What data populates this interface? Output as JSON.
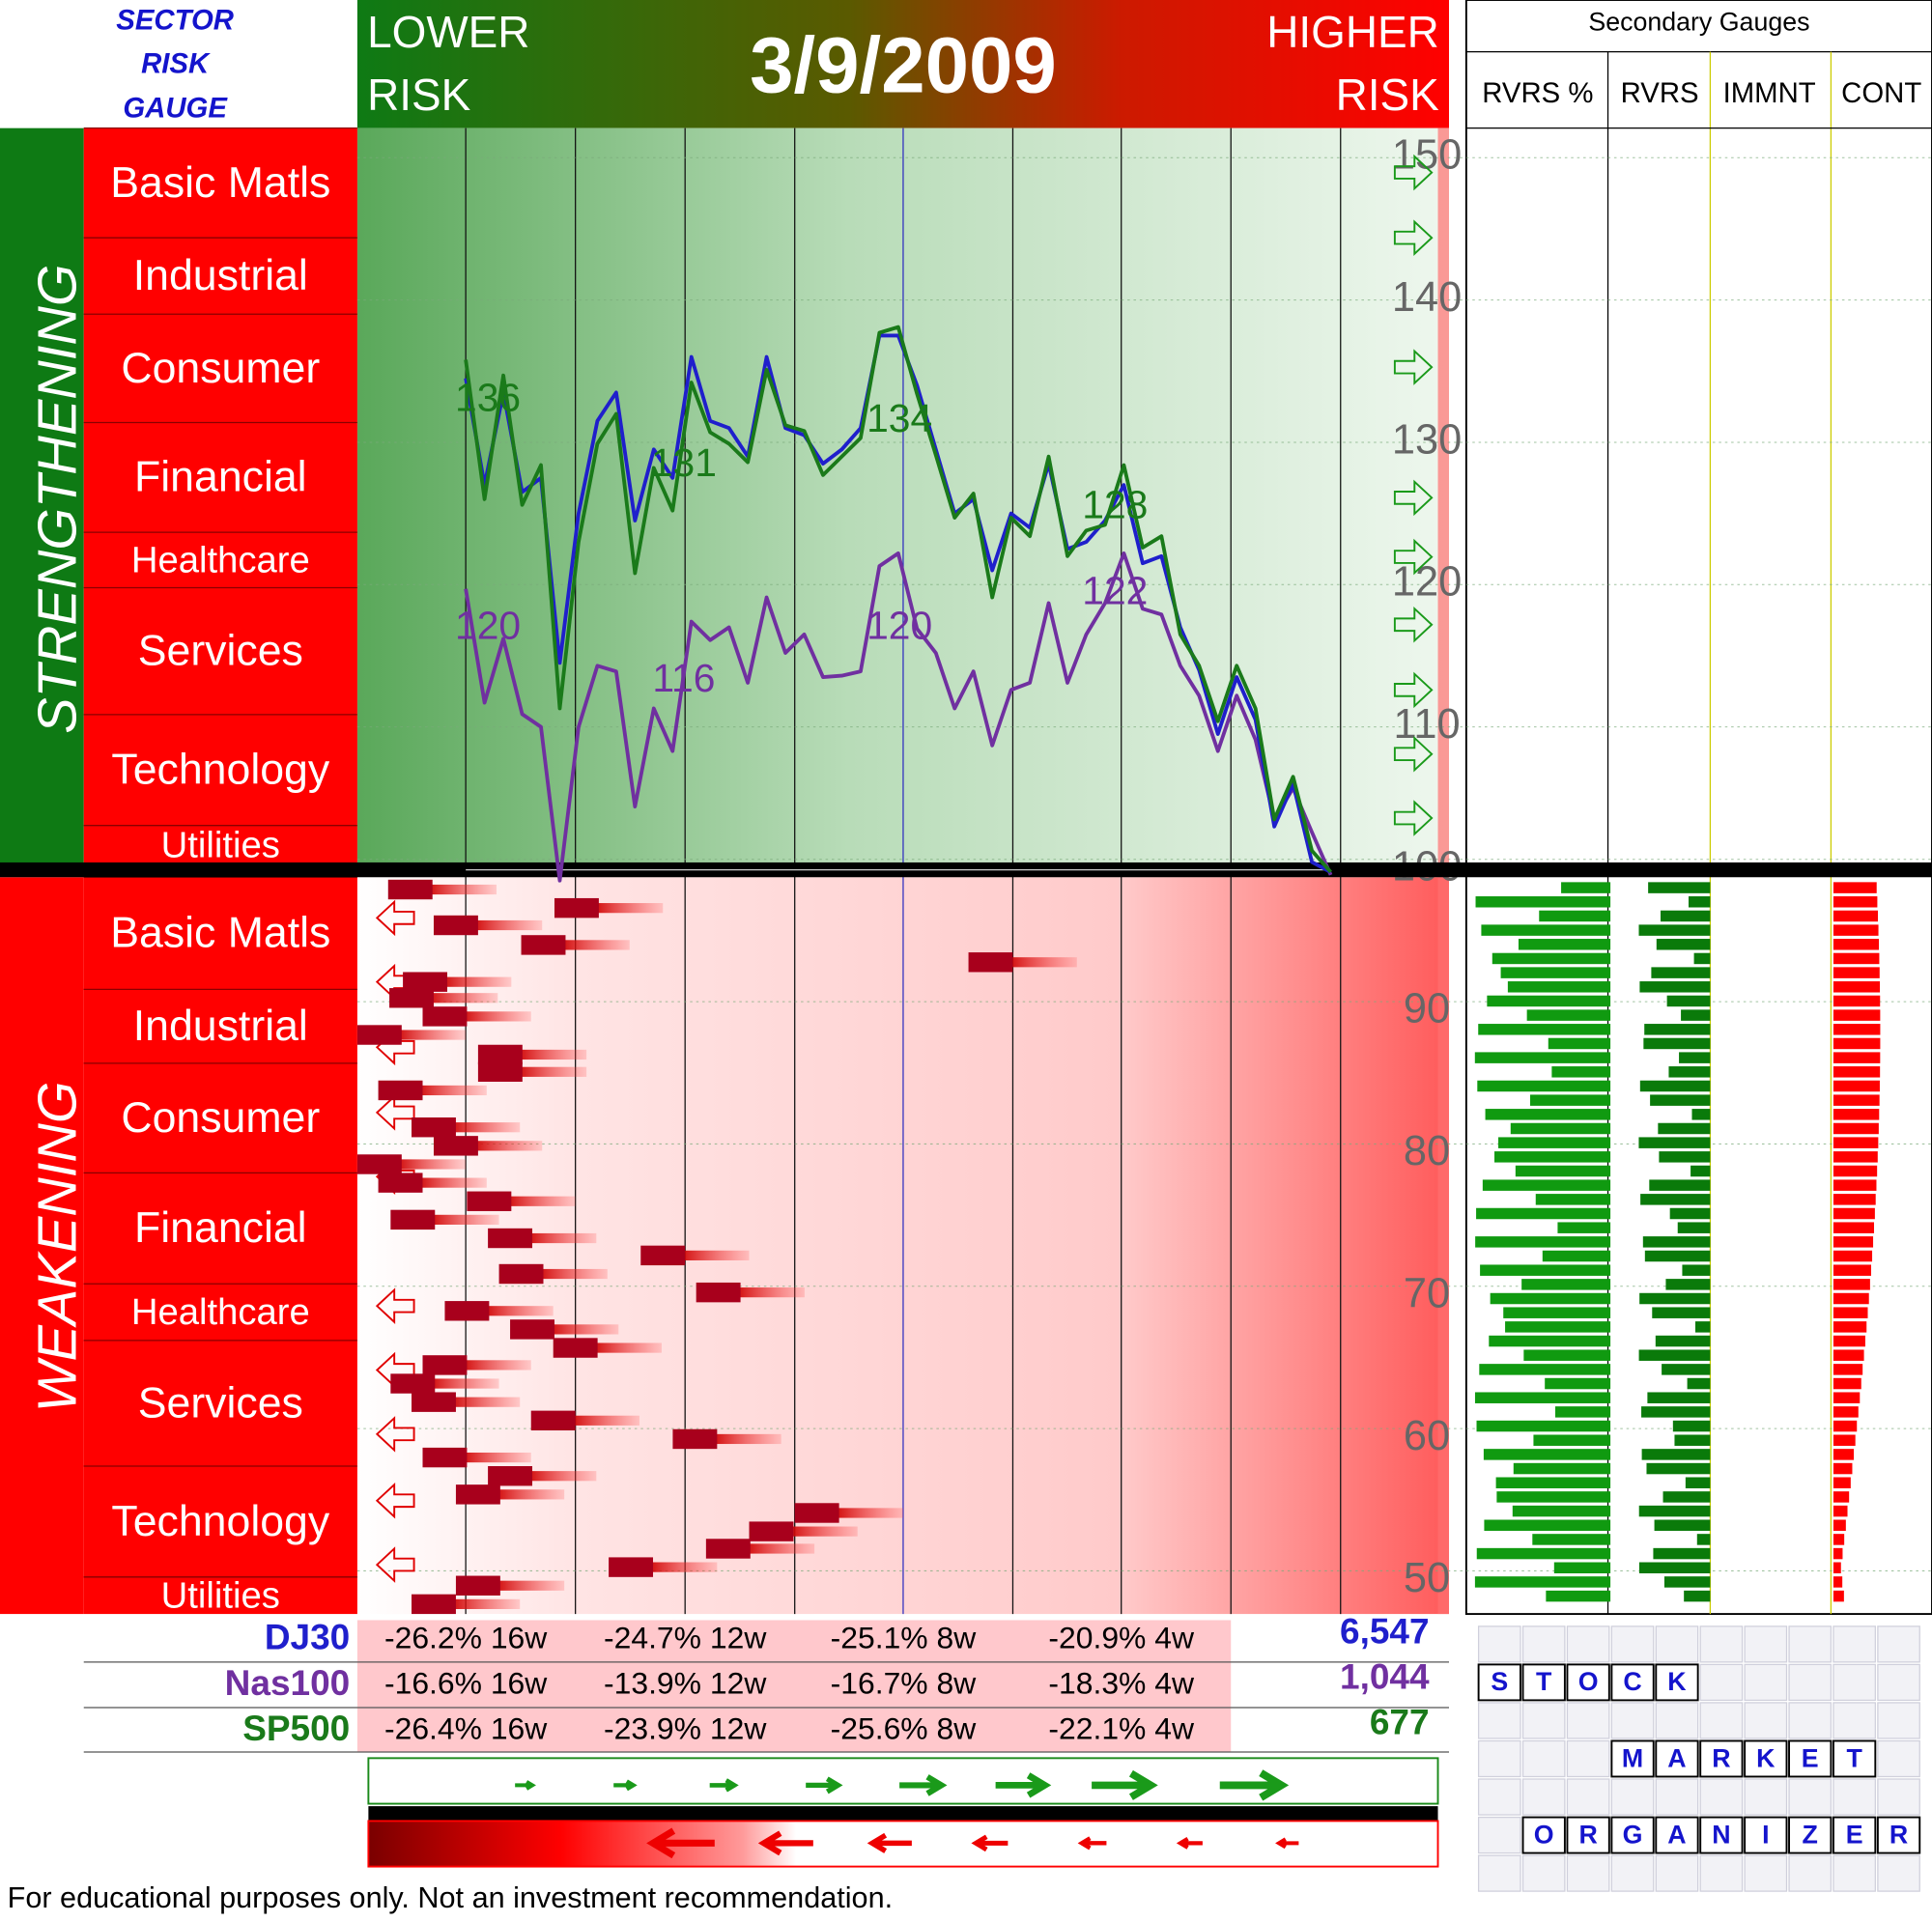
{
  "header": {
    "title_lines": [
      "SECTOR",
      "RISK",
      "GAUGE"
    ],
    "lower_risk": [
      "LOWER",
      "RISK"
    ],
    "date": "3/9/2009",
    "higher_risk": [
      "HIGHER",
      "RISK"
    ]
  },
  "secondary": {
    "title": "Secondary Gauges",
    "columns": [
      "RVRS %",
      "RVRS",
      "IMMNT",
      "CONT"
    ]
  },
  "sections": [
    {
      "name": "STRENGTHENING",
      "sectors": [
        "Basic Matls",
        "Industrial",
        "Consumer",
        "Financial",
        "Healthcare",
        "Services",
        "Technology",
        "Utilities"
      ]
    },
    {
      "name": "WEAKENING",
      "sectors": [
        "Basic Matls",
        "Industrial",
        "Consumer",
        "Financial",
        "Healthcare",
        "Services",
        "Technology",
        "Utilities"
      ]
    }
  ],
  "chart_data": {
    "type": "line",
    "categories": [
      null,
      null,
      null,
      null,
      null,
      null,
      null,
      null,
      null,
      null,
      null,
      null,
      null,
      null,
      null,
      null,
      null,
      null,
      null,
      null,
      null,
      null,
      null,
      null,
      null,
      null,
      null,
      null,
      null,
      null,
      null,
      null,
      null,
      null,
      null,
      null,
      null,
      null,
      null,
      null,
      null,
      null,
      null,
      null,
      null,
      null,
      null
    ],
    "series": [
      {
        "name": "DJ30",
        "color": "#1f1fcc",
        "values": [
          134.5,
          127,
          133.5,
          126.5,
          127.5,
          114.5,
          125,
          131.5,
          133.5,
          124.5,
          129.5,
          127.5,
          136,
          131.5,
          131,
          129,
          136,
          131,
          130.5,
          128.5,
          129.5,
          131,
          137.5,
          137.5,
          134,
          129.5,
          125,
          126,
          121,
          125,
          124,
          128.5,
          122.5,
          123,
          124.5,
          127,
          121.5,
          122,
          117,
          114,
          109.5,
          113.5,
          110.5,
          103,
          106,
          100.5,
          99.8
        ]
      },
      {
        "name": "Nas100",
        "color": "#7030a0",
        "values": [
          119.7,
          111.7,
          116.2,
          110.9,
          110,
          99.2,
          110,
          114.3,
          113.9,
          104.4,
          111.3,
          108.3,
          117.4,
          116.1,
          117,
          113.1,
          119.1,
          115.2,
          116.5,
          113.5,
          113.6,
          113.9,
          121.3,
          122.2,
          116.9,
          115.2,
          111.3,
          113.9,
          108.7,
          112.6,
          113.1,
          118.7,
          113.1,
          116.5,
          118.7,
          122.2,
          118.3,
          117.9,
          114.3,
          112.2,
          108.3,
          112.2,
          109.1,
          103.5,
          105.7,
          102.6,
          99.6
        ]
      },
      {
        "name": "SP500",
        "color": "#1a7a1a",
        "values": [
          135.8,
          126,
          134.7,
          125.6,
          128.4,
          111.3,
          123,
          129.9,
          132,
          120.8,
          128.2,
          125.2,
          134.2,
          130.7,
          129.9,
          128.6,
          135.1,
          131.2,
          130.8,
          127.7,
          129,
          130.3,
          137.7,
          138.1,
          133.4,
          129.1,
          124.7,
          126.4,
          119.1,
          124.7,
          123.4,
          129,
          122,
          123.8,
          124.2,
          128.4,
          122.6,
          123.4,
          116.5,
          114.3,
          110.4,
          114.3,
          111.3,
          103.5,
          106.5,
          101.3,
          99.8
        ]
      }
    ],
    "annotations": [
      {
        "text": "136",
        "color": "#1a7a1a"
      },
      {
        "text": "131",
        "color": "#1a7a1a"
      },
      {
        "text": "134",
        "color": "#1a7a1a"
      },
      {
        "text": "128",
        "color": "#1a7a1a"
      },
      {
        "text": "120",
        "color": "#7030a0"
      },
      {
        "text": "116",
        "color": "#7030a0"
      },
      {
        "text": "120",
        "color": "#7030a0"
      },
      {
        "text": "122",
        "color": "#7030a0"
      }
    ],
    "ylim": [
      50,
      150
    ],
    "yticks": [
      50,
      60,
      70,
      80,
      90,
      100,
      110,
      120,
      130,
      140,
      150
    ],
    "grid": true
  },
  "returns": {
    "rows": [
      {
        "cells": [
          "-26.2% 16w",
          "-24.7% 12w",
          "-25.1% 8w",
          "-20.9% 4w"
        ],
        "value": "6,547"
      },
      {
        "cells": [
          "-16.6% 16w",
          "-13.9% 12w",
          "-16.7% 8w",
          "-18.3% 4w"
        ],
        "value": "1,044"
      },
      {
        "cells": [
          "-26.4% 16w",
          "-23.9% 12w",
          "-25.6% 8w",
          "-22.1% 4w"
        ],
        "value": "677"
      }
    ]
  },
  "footer": "For educational purposes only.  Not an investment recommendation.",
  "logo": {
    "words": [
      [
        "S",
        "T",
        "O",
        "C",
        "K"
      ],
      [
        "M",
        "A",
        "R",
        "K",
        "E",
        "T"
      ],
      [
        "O",
        "R",
        "G",
        "A",
        "N",
        "I",
        "Z",
        "E",
        "R"
      ]
    ]
  }
}
